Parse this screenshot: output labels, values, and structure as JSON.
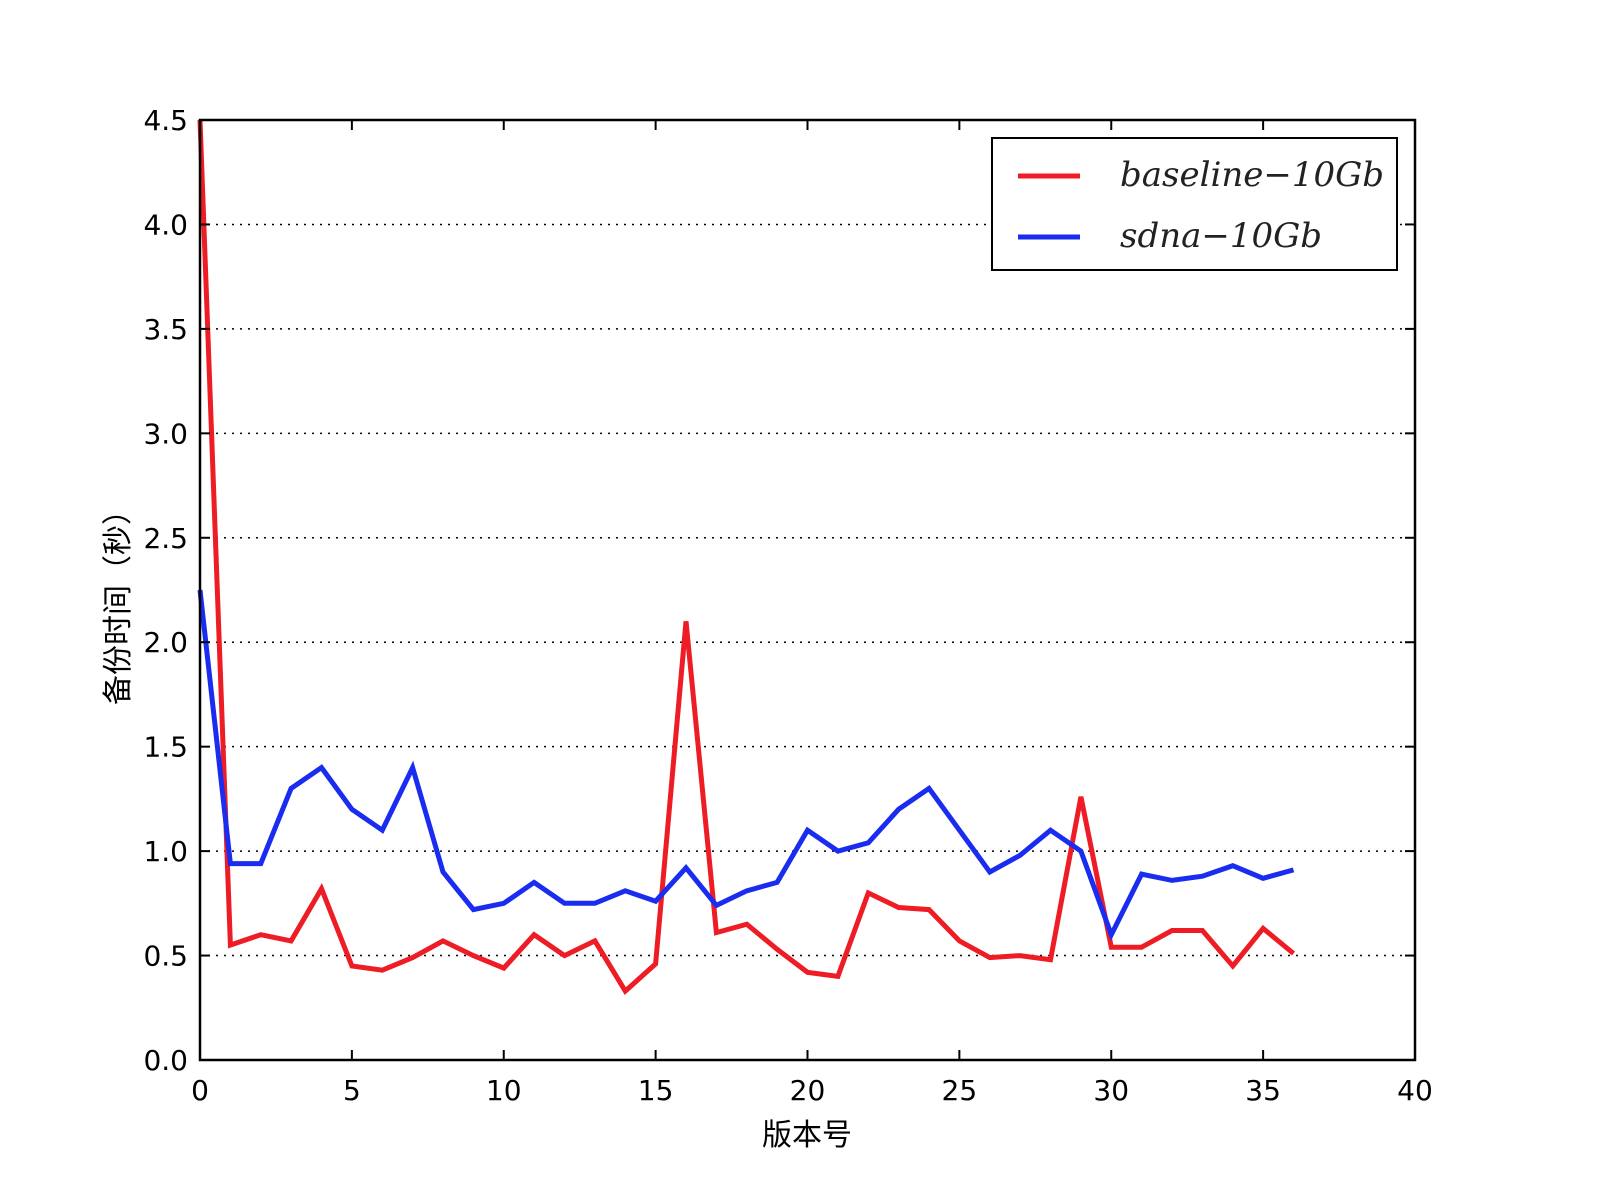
{
  "chart_data": {
    "type": "line",
    "title": "",
    "xlabel": "版本号",
    "ylabel": "备份时间（秒）",
    "xlim": [
      0,
      40
    ],
    "ylim": [
      0,
      4.5
    ],
    "xticks": [
      0,
      5,
      10,
      15,
      20,
      25,
      30,
      35,
      40
    ],
    "yticks": [
      0.0,
      0.5,
      1.0,
      1.5,
      2.0,
      2.5,
      3.0,
      3.5,
      4.0,
      4.5
    ],
    "xtick_labels": [
      "0",
      "5",
      "10",
      "15",
      "20",
      "25",
      "30",
      "35",
      "40"
    ],
    "ytick_labels": [
      "0.0",
      "0.5",
      "1.0",
      "1.5",
      "2.0",
      "2.5",
      "3.0",
      "3.5",
      "4.0",
      "4.5"
    ],
    "grid": "horizontal dotted",
    "legend_position": "top-right",
    "x": [
      0,
      1,
      2,
      3,
      4,
      5,
      6,
      7,
      8,
      9,
      10,
      11,
      12,
      13,
      14,
      15,
      16,
      17,
      18,
      19,
      20,
      21,
      22,
      23,
      24,
      25,
      26,
      27,
      28,
      29,
      30,
      31,
      32,
      33,
      34,
      35,
      36
    ],
    "series": [
      {
        "name": "baseline−10Gb",
        "color": "#ee1c25",
        "values": [
          4.5,
          0.55,
          0.6,
          0.57,
          0.82,
          0.45,
          0.43,
          0.49,
          0.57,
          0.5,
          0.44,
          0.6,
          0.5,
          0.57,
          0.33,
          0.46,
          2.1,
          0.61,
          0.65,
          0.53,
          0.42,
          0.4,
          0.8,
          0.73,
          0.72,
          0.57,
          0.49,
          0.5,
          0.48,
          1.26,
          0.54,
          0.54,
          0.62,
          0.62,
          0.45,
          0.63,
          0.51
        ]
      },
      {
        "name": "sdna−10Gb",
        "color": "#1a2cf0",
        "values": [
          2.25,
          0.94,
          0.94,
          1.3,
          1.4,
          1.2,
          1.1,
          1.4,
          0.9,
          0.72,
          0.75,
          0.85,
          0.75,
          0.75,
          0.81,
          0.76,
          0.92,
          0.74,
          0.81,
          0.85,
          1.1,
          1.0,
          1.04,
          1.2,
          1.3,
          1.1,
          0.9,
          0.98,
          1.1,
          1.0,
          0.6,
          0.89,
          0.86,
          0.88,
          0.93,
          0.87,
          0.91
        ]
      }
    ]
  }
}
